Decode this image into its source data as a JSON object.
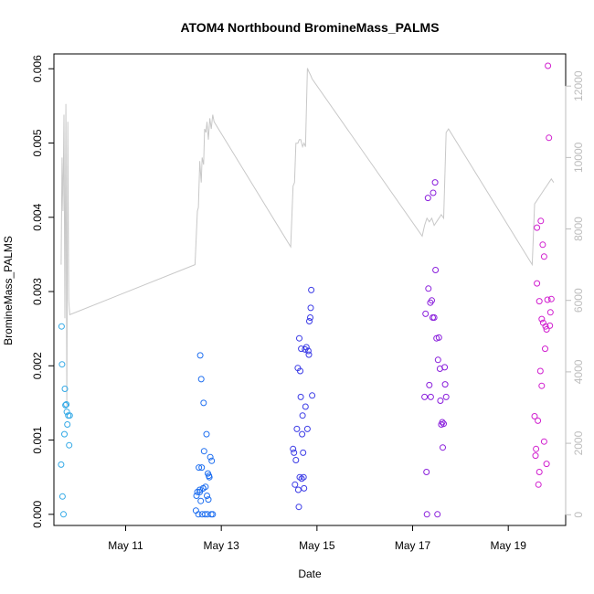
{
  "chart_data": {
    "type": "scatter",
    "title": "ATOM4 Northbound BromineMass_PALMS",
    "xlabel": "Date",
    "ylabel": "BromineMass_PALMS",
    "x_tick_labels": [
      "May 11",
      "May 13",
      "May 15",
      "May 17",
      "May 19"
    ],
    "x_tick_values": [
      11,
      13,
      15,
      17,
      19
    ],
    "xlim": [
      9.5,
      20.2
    ],
    "ylim": [
      -0.00015,
      0.0062
    ],
    "y_ticks": [
      "0.000",
      "0.001",
      "0.002",
      "0.003",
      "0.004",
      "0.005",
      "0.006"
    ],
    "y_tick_values": [
      0,
      0.001,
      0.002,
      0.003,
      0.004,
      0.005,
      0.006
    ],
    "y2lim": [
      -300,
      12900
    ],
    "y2_ticks": [
      "0",
      "2000",
      "4000",
      "6000",
      "8000",
      "10000",
      "12000"
    ],
    "y2_tick_values": [
      0,
      2000,
      4000,
      6000,
      8000,
      10000,
      12000
    ],
    "grid": false,
    "colors": {
      "flight1": "#33a9e6",
      "flight2": "#1f6ff0",
      "flight3": "#3b3be6",
      "flight4": "#8a1fdc",
      "flight5": "#d11fcf",
      "altitude_line": "#c8c8c8"
    },
    "series": [
      {
        "color_key": "flight1",
        "x": [
          9.65,
          9.66,
          9.67,
          9.68,
          9.7,
          9.72,
          9.73,
          9.74,
          9.76,
          9.77,
          9.78,
          9.8,
          9.82,
          9.83
        ],
        "y": [
          0.00067,
          0.00253,
          0.00202,
          0.00024,
          0.0,
          0.00108,
          0.00169,
          0.00147,
          0.00148,
          0.00138,
          0.00121,
          0.00133,
          0.00093,
          0.00133
        ]
      },
      {
        "color_key": "flight2",
        "x": [
          12.47,
          12.48,
          12.5,
          12.52,
          12.53,
          12.55,
          12.56,
          12.58,
          12.59,
          12.6,
          12.62,
          12.63,
          12.64,
          12.66,
          12.67,
          12.69,
          12.7,
          12.71,
          12.72,
          12.73,
          12.74,
          12.75,
          12.77,
          12.79,
          12.8,
          12.82,
          12.62,
          12.57,
          12.55
        ],
        "y": [
          5e-05,
          0.00025,
          0.0003,
          0.0,
          0.00063,
          0.0003,
          0.00214,
          0.00182,
          0.00063,
          0.0,
          0.00035,
          0.0015,
          0.00085,
          0.0,
          0.00037,
          0.00108,
          0.00025,
          0.0,
          0.00055,
          0.0002,
          0.00052,
          0.0005,
          0.00077,
          0.0,
          0.00072,
          0.0,
          0.00035,
          0.00018,
          0.00033
        ]
      },
      {
        "color_key": "flight3",
        "x": [
          14.5,
          14.52,
          14.54,
          14.56,
          14.58,
          14.6,
          14.62,
          14.63,
          14.65,
          14.66,
          14.68,
          14.7,
          14.71,
          14.73,
          14.75,
          14.76,
          14.78,
          14.8,
          14.82,
          14.83,
          14.84,
          14.86,
          14.87,
          14.88,
          14.9,
          14.61,
          14.64,
          14.67,
          14.69,
          14.72
        ],
        "y": [
          0.00088,
          0.00083,
          0.0004,
          0.00073,
          0.00115,
          0.00197,
          0.0001,
          0.00237,
          0.00193,
          0.00158,
          0.00048,
          0.00133,
          0.00083,
          0.00035,
          0.00222,
          0.00145,
          0.00225,
          0.00115,
          0.0022,
          0.00215,
          0.0026,
          0.00265,
          0.00278,
          0.00302,
          0.0016,
          0.00033,
          0.0005,
          0.00223,
          0.00108,
          0.0005
        ]
      },
      {
        "color_key": "flight4",
        "x": [
          17.25,
          17.27,
          17.29,
          17.3,
          17.32,
          17.33,
          17.35,
          17.37,
          17.38,
          17.4,
          17.42,
          17.43,
          17.45,
          17.47,
          17.48,
          17.5,
          17.52,
          17.53,
          17.55,
          17.57,
          17.58,
          17.6,
          17.62,
          17.63,
          17.65,
          17.67,
          17.68,
          17.7
        ],
        "y": [
          0.00158,
          0.0027,
          0.00057,
          0.0,
          0.00426,
          0.00304,
          0.00174,
          0.00285,
          0.00158,
          0.00288,
          0.00265,
          0.00433,
          0.00265,
          0.00447,
          0.00329,
          0.00237,
          0.0,
          0.00208,
          0.00238,
          0.00196,
          0.00153,
          0.00121,
          0.00124,
          0.0009,
          0.00122,
          0.00198,
          0.00175,
          0.00158
        ]
      },
      {
        "color_key": "flight5",
        "x": [
          19.55,
          19.57,
          19.58,
          19.6,
          19.62,
          19.63,
          19.65,
          19.67,
          19.68,
          19.7,
          19.72,
          19.73,
          19.75,
          19.77,
          19.78,
          19.8,
          19.82,
          19.83,
          19.85,
          19.87,
          19.88,
          19.9,
          19.6,
          19.65,
          19.7,
          19.75,
          19.8
        ],
        "y": [
          0.00132,
          0.00079,
          0.00088,
          0.00311,
          0.00126,
          0.0004,
          0.00287,
          0.00193,
          0.00395,
          0.00173,
          0.00363,
          0.00258,
          0.00347,
          0.00223,
          0.00253,
          0.00249,
          0.00289,
          0.00604,
          0.00507,
          0.00254,
          0.00272,
          0.0029,
          0.00386,
          0.00057,
          0.00263,
          0.00098,
          0.00068
        ]
      }
    ],
    "altitude_axis": "right",
    "altitude_series": {
      "x": [
        9.65,
        9.67,
        9.69,
        9.71,
        9.73,
        9.75,
        9.77,
        9.79,
        9.81,
        9.83,
        12.45,
        12.5,
        12.52,
        12.55,
        12.58,
        12.6,
        12.63,
        12.65,
        12.68,
        12.7,
        12.73,
        12.76,
        12.79,
        12.82,
        12.85,
        14.45,
        14.5,
        14.53,
        14.56,
        14.6,
        14.63,
        14.66,
        14.7,
        14.73,
        14.76,
        14.8,
        14.83,
        14.87,
        14.9,
        17.2,
        17.25,
        17.3,
        17.35,
        17.4,
        17.45,
        17.5,
        17.55,
        17.6,
        17.65,
        17.7,
        17.75,
        19.5,
        19.55,
        19.6,
        19.65,
        19.7,
        19.75,
        19.8,
        19.85,
        19.9,
        19.95
      ],
      "y": [
        7000,
        10000,
        8500,
        11200,
        5500,
        11500,
        3000,
        11000,
        6000,
        5600,
        7000,
        8500,
        8600,
        9900,
        9300,
        10000,
        9800,
        10800,
        10700,
        11000,
        10500,
        11100,
        10800,
        11200,
        11000,
        7500,
        9200,
        9300,
        10400,
        10400,
        10500,
        10500,
        10300,
        10400,
        10300,
        12500,
        12400,
        12300,
        12200,
        7800,
        8100,
        8300,
        8200,
        8300,
        8100,
        8200,
        8300,
        8400,
        8300,
        10700,
        10800,
        7000,
        8700,
        8800,
        8900,
        9000,
        9100,
        9200,
        9300,
        9400,
        9300
      ]
    }
  }
}
